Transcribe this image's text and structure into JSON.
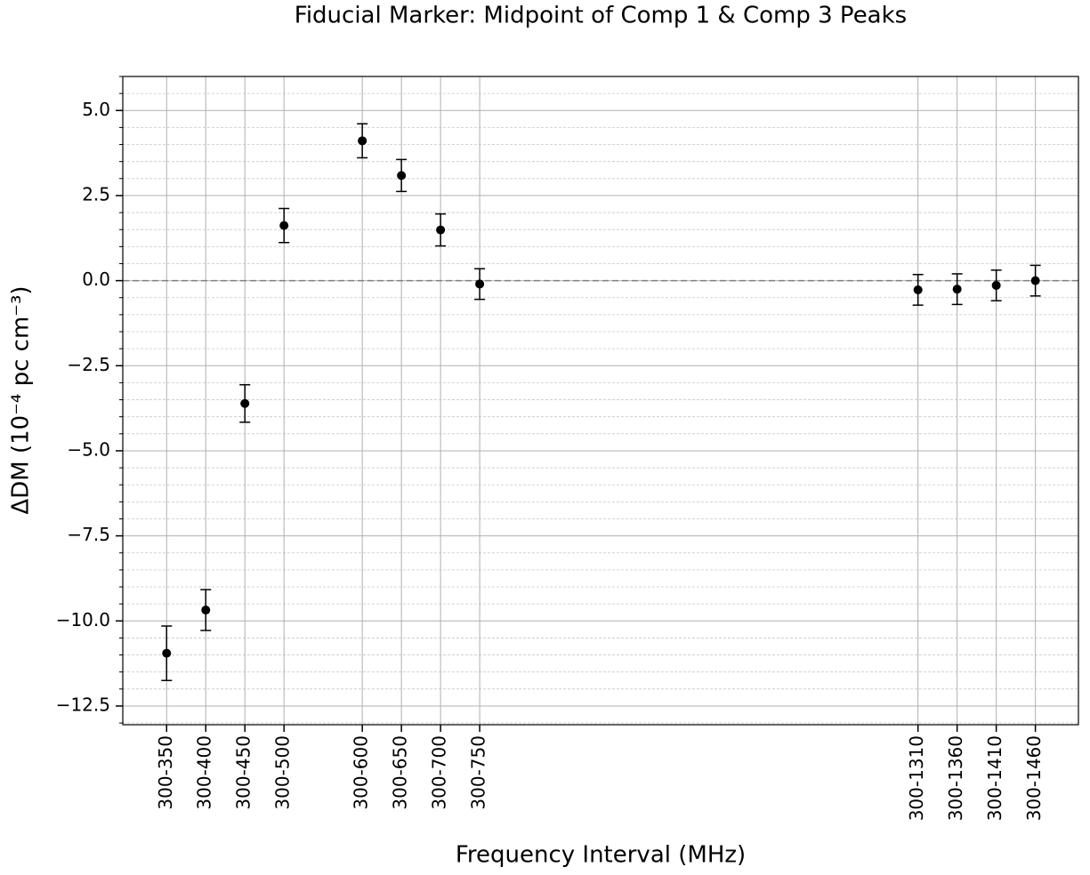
{
  "chart_data": {
    "type": "errorbar",
    "title": "Fiducial Marker: Midpoint of Comp 1 & Comp 3 Peaks",
    "xlabel": "Frequency Interval (MHz)",
    "ylabel": "ΔDM  (10⁻⁴ pc cm⁻³)",
    "x": [
      350,
      400,
      450,
      500,
      600,
      650,
      700,
      750,
      1310,
      1360,
      1410,
      1460
    ],
    "series": [
      {
        "color": "#000000",
        "values": [
          -10.95,
          -9.68,
          -3.61,
          1.62,
          4.11,
          3.09,
          1.49,
          -0.1,
          -0.27,
          -0.25,
          -0.14,
          0.0
        ],
        "errors": [
          0.8,
          0.6,
          0.55,
          0.5,
          0.5,
          0.47,
          0.47,
          0.45,
          0.45,
          0.45,
          0.45,
          0.45
        ]
      }
    ],
    "xlim": [
      294,
      1515
    ],
    "ylim": [
      -13.05,
      6
    ],
    "xticks": [
      {
        "value": 350,
        "label": "300-350"
      },
      {
        "value": 400,
        "label": "300-400"
      },
      {
        "value": 450,
        "label": "300-450"
      },
      {
        "value": 500,
        "label": "300-500"
      },
      {
        "value": 600,
        "label": "300-600"
      },
      {
        "value": 650,
        "label": "300-650"
      },
      {
        "value": 700,
        "label": "300-700"
      },
      {
        "value": 750,
        "label": "300-750"
      },
      {
        "value": 1310,
        "label": "300-1310"
      },
      {
        "value": 1360,
        "label": "300-1360"
      },
      {
        "value": 1410,
        "label": "300-1410"
      },
      {
        "value": 1460,
        "label": "300-1460"
      }
    ],
    "yticks": [
      {
        "value": 5,
        "label": "5.0"
      },
      {
        "value": 2.5,
        "label": "2.5"
      },
      {
        "value": 0,
        "label": "0.0"
      },
      {
        "value": -2.5,
        "label": "−2.5"
      },
      {
        "value": -5,
        "label": "−5.0"
      },
      {
        "value": -7.5,
        "label": "−7.5"
      },
      {
        "value": -10,
        "label": "−10.0"
      },
      {
        "value": -12.5,
        "label": "−12.5"
      }
    ],
    "grid": true,
    "minor_grid": true,
    "hline": 0
  }
}
